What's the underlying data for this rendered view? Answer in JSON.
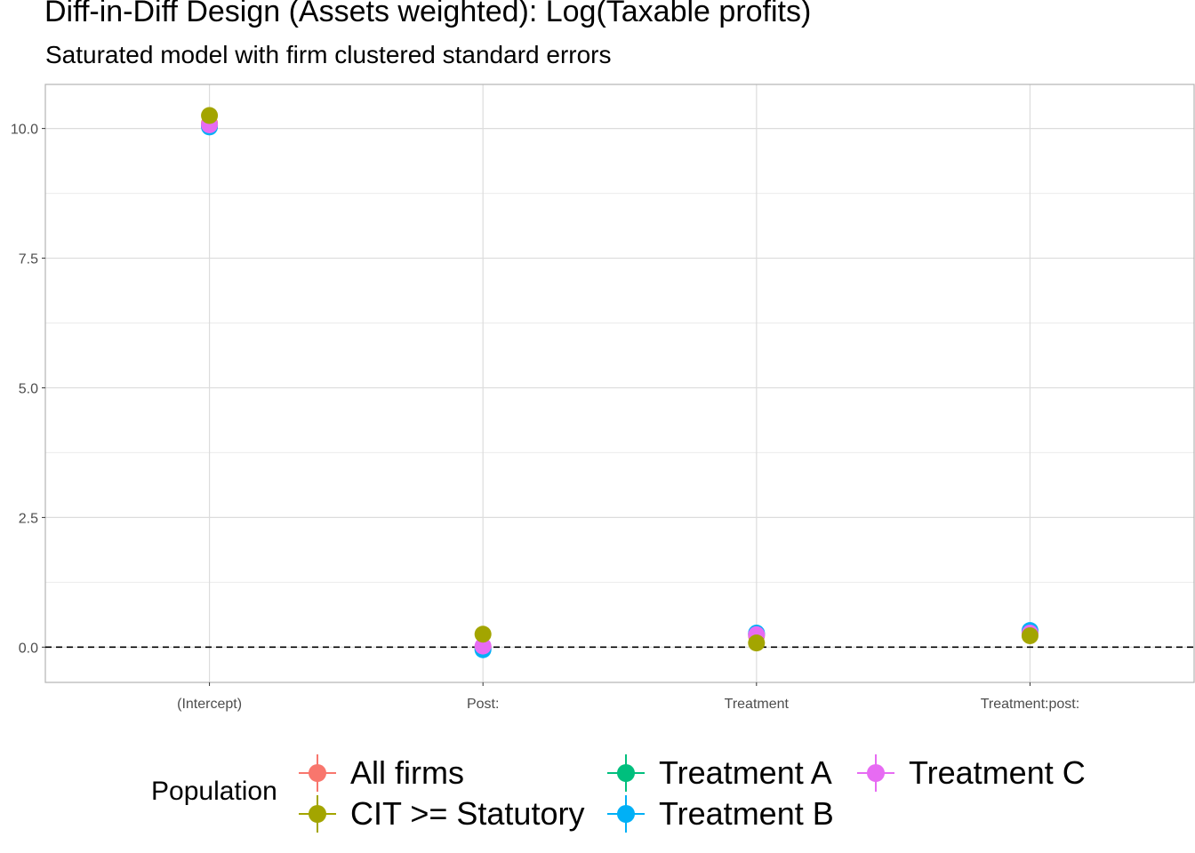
{
  "chart_data": {
    "type": "scatter",
    "title": "Diff-in-Diff Design (Assets weighted): Log(Taxable profits)",
    "subtitle": "Saturated model with firm clustered standard errors",
    "xlabel": "",
    "ylabel": "",
    "categories": [
      "(Intercept)",
      "Post:",
      "Treatment",
      "Treatment:post:"
    ],
    "ylim": [
      -0.68,
      10.85
    ],
    "yticks": [
      "0.0",
      "2.5",
      "5.0",
      "7.5",
      "10.0"
    ],
    "ytick_values": [
      0,
      2.5,
      5,
      7.5,
      10
    ],
    "reference_line": {
      "y": 0,
      "style": "dashed"
    },
    "grid": true,
    "legend_title": "Population",
    "legend_position": "bottom",
    "series": [
      {
        "name": "All firms",
        "color": "#F8766D",
        "values": [
          10.1,
          0.0,
          0.22,
          0.28
        ]
      },
      {
        "name": "CIT >= Statutory",
        "color": "#A3A500",
        "values": [
          10.25,
          0.25,
          0.08,
          0.22
        ]
      },
      {
        "name": "Treatment A",
        "color": "#00BF7D",
        "values": [
          10.05,
          -0.03,
          0.25,
          0.3
        ]
      },
      {
        "name": "Treatment B",
        "color": "#00B0F6",
        "values": [
          10.03,
          -0.05,
          0.27,
          0.32
        ]
      },
      {
        "name": "Treatment C",
        "color": "#E76BF3",
        "values": [
          10.07,
          0.02,
          0.24,
          0.27
        ]
      }
    ],
    "draw_order": [
      0,
      2,
      3,
      4,
      1
    ]
  }
}
